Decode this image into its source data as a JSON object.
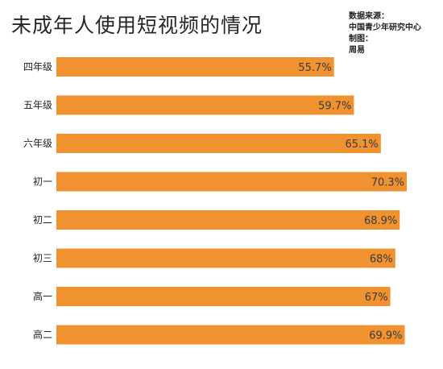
{
  "title": "未成年人使用短视频的情况",
  "source": {
    "label": "数据来源：",
    "value": "中国青少年研究中心",
    "author_label": "制图：",
    "author": "周易"
  },
  "colors": {
    "bar": "#F0922F",
    "text": "#222222"
  },
  "chart_data": {
    "type": "bar",
    "orientation": "horizontal",
    "title": "未成年人使用短视频的情况",
    "categories": [
      "四年级",
      "五年级",
      "六年级",
      "初一",
      "初二",
      "初三",
      "高一",
      "高二"
    ],
    "values": [
      55.7,
      59.7,
      65.1,
      70.3,
      68.9,
      68,
      67,
      69.9
    ],
    "value_labels": [
      "55.7%",
      "59.7%",
      "65.1%",
      "70.3%",
      "68.9%",
      "68%",
      "67%",
      "69.9%"
    ],
    "unit": "%",
    "xlim": [
      0,
      70.3
    ],
    "grid": false,
    "legend": "none"
  }
}
